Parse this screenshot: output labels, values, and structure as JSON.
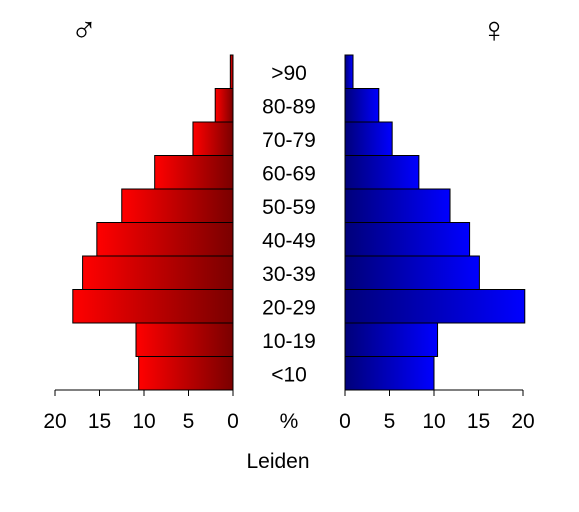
{
  "chart_data": {
    "type": "bar",
    "subtype": "population-pyramid",
    "title": "",
    "xlabel": "Leiden",
    "center_unit_label": "%",
    "categories": [
      "<10",
      "10-19",
      "20-29",
      "30-39",
      "40-49",
      "50-59",
      "60-69",
      "70-79",
      "80-89",
      ">90"
    ],
    "series": [
      {
        "name": "♂",
        "side": "left",
        "color_light": "#ff0000",
        "color_dark": "#7a0000",
        "values": [
          10.6,
          10.9,
          18.0,
          16.9,
          15.3,
          12.5,
          8.8,
          4.5,
          2.0,
          0.3
        ]
      },
      {
        "name": "♀",
        "side": "right",
        "color_light": "#0000ff",
        "color_dark": "#00007a",
        "values": [
          10.0,
          10.4,
          20.2,
          15.1,
          14.0,
          11.8,
          8.3,
          5.3,
          3.8,
          0.9
        ]
      }
    ],
    "xlim": [
      0,
      20
    ],
    "x_ticks": [
      "0",
      "5",
      "10",
      "15",
      "20"
    ],
    "left_axis_tick_labels": [
      "20",
      "15",
      "10",
      "5",
      "0"
    ],
    "right_axis_tick_labels": [
      "0",
      "5",
      "10",
      "15",
      "20"
    ],
    "grid": false,
    "legend": "none"
  }
}
